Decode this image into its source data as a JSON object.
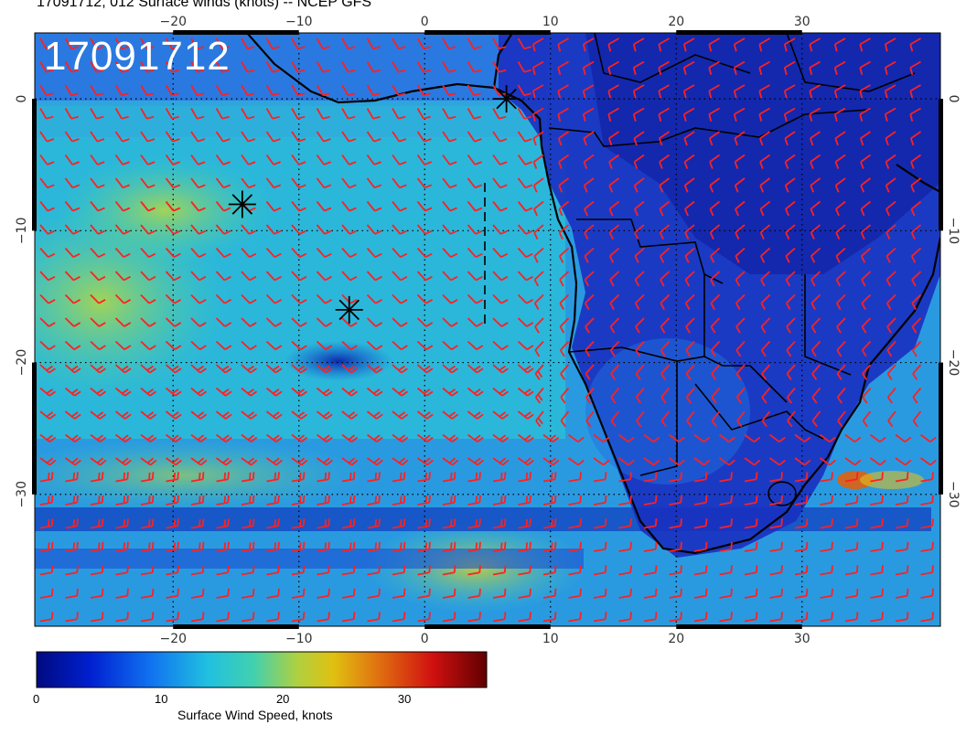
{
  "header": {
    "title": "17091712, 012 Surface winds (knots) -- NCEP GFS",
    "stamp": "17091712"
  },
  "map": {
    "lon_range": [
      -31,
      41
    ],
    "lat_range": [
      -40,
      5
    ],
    "lon_ticks": [
      -20,
      -10,
      0,
      10,
      20,
      30
    ],
    "lat_ticks": [
      0,
      -10,
      -20,
      -30
    ],
    "lon_tick_labels": [
      "−20",
      "−10",
      "0",
      "10",
      "20",
      "30"
    ],
    "lat_tick_labels": [
      "0",
      "−10",
      "−20",
      "−30"
    ],
    "wind_barb_color": "#ff2020",
    "gridline_style": "dotted",
    "storm_markers": [
      {
        "lon": 6.5,
        "lat": 0
      },
      {
        "lon": -14.5,
        "lat": -8
      },
      {
        "lon": -6,
        "lat": -16
      }
    ]
  },
  "colorbar": {
    "label": "Surface Wind Speed, knots",
    "range": [
      0,
      37
    ],
    "ticks": [
      0,
      10,
      20,
      30
    ],
    "tick_labels": [
      "0",
      "10",
      "20",
      "30"
    ],
    "colors": [
      "#000a80",
      "#0020d0",
      "#1070f0",
      "#20c0e0",
      "#40d0b0",
      "#b0d040",
      "#e0c010",
      "#e07010",
      "#d01010",
      "#600000"
    ]
  }
}
